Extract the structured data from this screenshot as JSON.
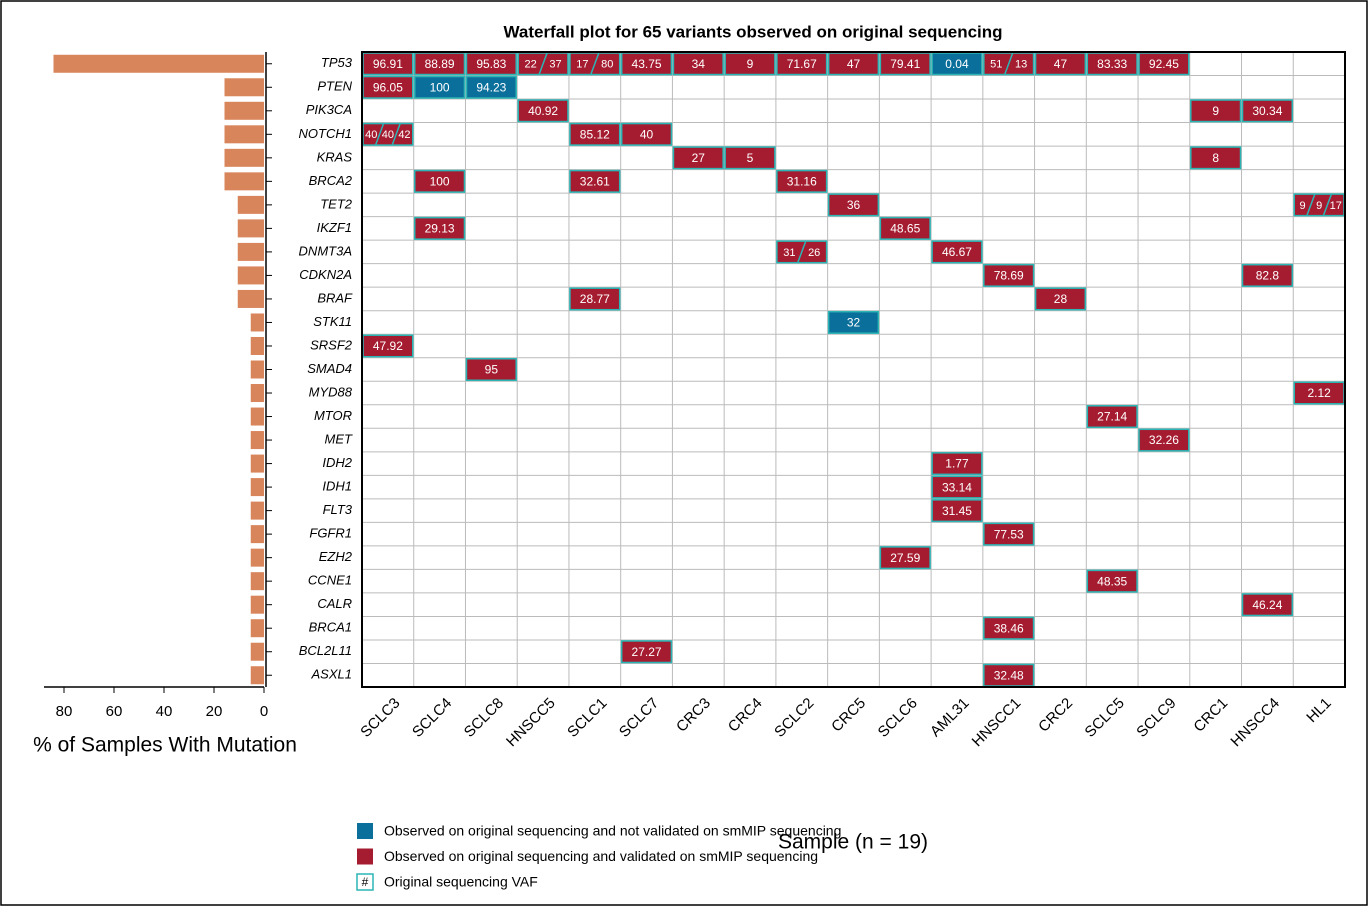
{
  "chart_data": [
    {
      "type": "bar",
      "orientation": "horizontal",
      "color": "#d8855b",
      "xlabel": "% of Samples With Mutation",
      "categories": [
        "TP53",
        "PTEN",
        "PIK3CA",
        "NOTCH1",
        "KRAS",
        "BRCA2",
        "TET2",
        "IKZF1",
        "DNMT3A",
        "CDKN2A",
        "BRAF",
        "STK11",
        "SRSF2",
        "SMAD4",
        "MYD88",
        "MTOR",
        "MET",
        "IDH2",
        "IDH1",
        "FLT3",
        "FGFR1",
        "EZH2",
        "CCNE1",
        "CALR",
        "BRCA1",
        "BCL2L11",
        "ASXL1"
      ],
      "values": [
        84.2,
        15.8,
        15.8,
        15.8,
        15.8,
        15.8,
        10.5,
        10.5,
        10.5,
        10.5,
        10.5,
        5.3,
        5.3,
        5.3,
        5.3,
        5.3,
        5.3,
        5.3,
        5.3,
        5.3,
        5.3,
        5.3,
        5.3,
        5.3,
        5.3,
        5.3,
        5.3
      ],
      "xlim": [
        88,
        0
      ],
      "xticks": [
        80,
        60,
        40,
        20,
        0
      ]
    },
    {
      "type": "heatmap",
      "title": "Waterfall plot for 65 variants observed on original sequencing",
      "xlabel": "Sample (n = 19)",
      "columns": [
        "SCLC3",
        "SCLC4",
        "SCLC8",
        "HNSCC5",
        "SCLC1",
        "SCLC7",
        "CRC3",
        "CRC4",
        "SCLC2",
        "CRC5",
        "SCLC6",
        "AML31",
        "HNSCC1",
        "CRC2",
        "SCLC5",
        "SCLC9",
        "CRC1",
        "HNSCC4",
        "HL1"
      ],
      "validated_color": "#a51c30",
      "not_validated_color": "#0b6f9b",
      "border_color": "#2bb5b5",
      "cells": [
        {
          "gene": "TP53",
          "sample": "SCLC3",
          "values": [
            96.91
          ],
          "validated": true
        },
        {
          "gene": "TP53",
          "sample": "SCLC4",
          "values": [
            88.89
          ],
          "validated": true
        },
        {
          "gene": "TP53",
          "sample": "SCLC8",
          "values": [
            95.83
          ],
          "validated": true
        },
        {
          "gene": "TP53",
          "sample": "HNSCC5",
          "values": [
            22,
            37
          ],
          "validated": true
        },
        {
          "gene": "TP53",
          "sample": "SCLC1",
          "values": [
            17,
            80
          ],
          "validated": true
        },
        {
          "gene": "TP53",
          "sample": "SCLC7",
          "values": [
            43.75
          ],
          "validated": true
        },
        {
          "gene": "TP53",
          "sample": "CRC3",
          "values": [
            34
          ],
          "validated": true
        },
        {
          "gene": "TP53",
          "sample": "CRC4",
          "values": [
            9
          ],
          "validated": true
        },
        {
          "gene": "TP53",
          "sample": "SCLC2",
          "values": [
            71.67
          ],
          "validated": true
        },
        {
          "gene": "TP53",
          "sample": "CRC5",
          "values": [
            47
          ],
          "validated": true
        },
        {
          "gene": "TP53",
          "sample": "SCLC6",
          "values": [
            79.41
          ],
          "validated": true
        },
        {
          "gene": "TP53",
          "sample": "AML31",
          "values": [
            0.04
          ],
          "validated": false
        },
        {
          "gene": "TP53",
          "sample": "HNSCC1",
          "values": [
            51,
            13
          ],
          "validated": true
        },
        {
          "gene": "TP53",
          "sample": "CRC2",
          "values": [
            47
          ],
          "validated": true
        },
        {
          "gene": "TP53",
          "sample": "SCLC5",
          "values": [
            83.33
          ],
          "validated": true
        },
        {
          "gene": "TP53",
          "sample": "SCLC9",
          "values": [
            92.45
          ],
          "validated": true
        },
        {
          "gene": "PTEN",
          "sample": "SCLC3",
          "values": [
            96.05
          ],
          "validated": true
        },
        {
          "gene": "PTEN",
          "sample": "SCLC4",
          "values": [
            100
          ],
          "validated": false
        },
        {
          "gene": "PTEN",
          "sample": "SCLC8",
          "values": [
            94.23
          ],
          "validated": false
        },
        {
          "gene": "PIK3CA",
          "sample": "HNSCC5",
          "values": [
            40.92
          ],
          "validated": true
        },
        {
          "gene": "PIK3CA",
          "sample": "CRC1",
          "values": [
            9
          ],
          "validated": true
        },
        {
          "gene": "PIK3CA",
          "sample": "HNSCC4",
          "values": [
            30.34
          ],
          "validated": true
        },
        {
          "gene": "NOTCH1",
          "sample": "SCLC3",
          "values": [
            40,
            40,
            42
          ],
          "validated": true
        },
        {
          "gene": "NOTCH1",
          "sample": "SCLC1",
          "values": [
            85.12
          ],
          "validated": true
        },
        {
          "gene": "NOTCH1",
          "sample": "SCLC7",
          "values": [
            40
          ],
          "validated": true
        },
        {
          "gene": "KRAS",
          "sample": "CRC3",
          "values": [
            27
          ],
          "validated": true
        },
        {
          "gene": "KRAS",
          "sample": "CRC4",
          "values": [
            5
          ],
          "validated": true
        },
        {
          "gene": "KRAS",
          "sample": "CRC1",
          "values": [
            8
          ],
          "validated": true
        },
        {
          "gene": "BRCA2",
          "sample": "SCLC4",
          "values": [
            100
          ],
          "validated": true
        },
        {
          "gene": "BRCA2",
          "sample": "SCLC1",
          "values": [
            32.61
          ],
          "validated": true
        },
        {
          "gene": "BRCA2",
          "sample": "SCLC2",
          "values": [
            31.16
          ],
          "validated": true
        },
        {
          "gene": "TET2",
          "sample": "CRC5",
          "values": [
            36
          ],
          "validated": true
        },
        {
          "gene": "TET2",
          "sample": "HL1",
          "values": [
            9,
            9,
            17
          ],
          "validated": true
        },
        {
          "gene": "IKZF1",
          "sample": "SCLC4",
          "values": [
            29.13
          ],
          "validated": true
        },
        {
          "gene": "IKZF1",
          "sample": "SCLC6",
          "values": [
            48.65
          ],
          "validated": true
        },
        {
          "gene": "DNMT3A",
          "sample": "SCLC2",
          "values": [
            31,
            26
          ],
          "validated": true
        },
        {
          "gene": "DNMT3A",
          "sample": "AML31",
          "values": [
            46.67
          ],
          "validated": true
        },
        {
          "gene": "CDKN2A",
          "sample": "HNSCC1",
          "values": [
            78.69
          ],
          "validated": true
        },
        {
          "gene": "CDKN2A",
          "sample": "HNSCC4",
          "values": [
            82.8
          ],
          "validated": true
        },
        {
          "gene": "BRAF",
          "sample": "SCLC1",
          "values": [
            28.77
          ],
          "validated": true
        },
        {
          "gene": "BRAF",
          "sample": "CRC2",
          "values": [
            28
          ],
          "validated": true
        },
        {
          "gene": "STK11",
          "sample": "CRC5",
          "values": [
            32
          ],
          "validated": false
        },
        {
          "gene": "SRSF2",
          "sample": "SCLC3",
          "values": [
            47.92
          ],
          "validated": true
        },
        {
          "gene": "SMAD4",
          "sample": "SCLC8",
          "values": [
            95
          ],
          "validated": true
        },
        {
          "gene": "MYD88",
          "sample": "HL1",
          "values": [
            2.12
          ],
          "validated": true
        },
        {
          "gene": "MTOR",
          "sample": "SCLC5",
          "values": [
            27.14
          ],
          "validated": true
        },
        {
          "gene": "MET",
          "sample": "SCLC9",
          "values": [
            32.26
          ],
          "validated": true
        },
        {
          "gene": "IDH2",
          "sample": "AML31",
          "values": [
            1.77
          ],
          "validated": true
        },
        {
          "gene": "IDH1",
          "sample": "AML31",
          "values": [
            33.14
          ],
          "validated": true
        },
        {
          "gene": "FLT3",
          "sample": "AML31",
          "values": [
            31.45
          ],
          "validated": true
        },
        {
          "gene": "FGFR1",
          "sample": "HNSCC1",
          "values": [
            77.53
          ],
          "validated": true
        },
        {
          "gene": "EZH2",
          "sample": "SCLC6",
          "values": [
            27.59
          ],
          "validated": true
        },
        {
          "gene": "CCNE1",
          "sample": "SCLC5",
          "values": [
            48.35
          ],
          "validated": true
        },
        {
          "gene": "CALR",
          "sample": "HNSCC4",
          "values": [
            46.24
          ],
          "validated": true
        },
        {
          "gene": "BRCA1",
          "sample": "HNSCC1",
          "values": [
            38.46
          ],
          "validated": true
        },
        {
          "gene": "BCL2L11",
          "sample": "SCLC7",
          "values": [
            27.27
          ],
          "validated": true
        },
        {
          "gene": "ASXL1",
          "sample": "HNSCC1",
          "values": [
            32.48
          ],
          "validated": true
        }
      ],
      "legend": [
        {
          "label": "Observed on original sequencing and not validated on smMIP sequencing",
          "color": "#0b6f9b"
        },
        {
          "label": "Observed on original sequencing and validated on smMIP sequencing",
          "color": "#a51c30"
        },
        {
          "label": "Original sequencing VAF",
          "color": "#2bb5b5",
          "symbol": "#"
        }
      ]
    }
  ]
}
